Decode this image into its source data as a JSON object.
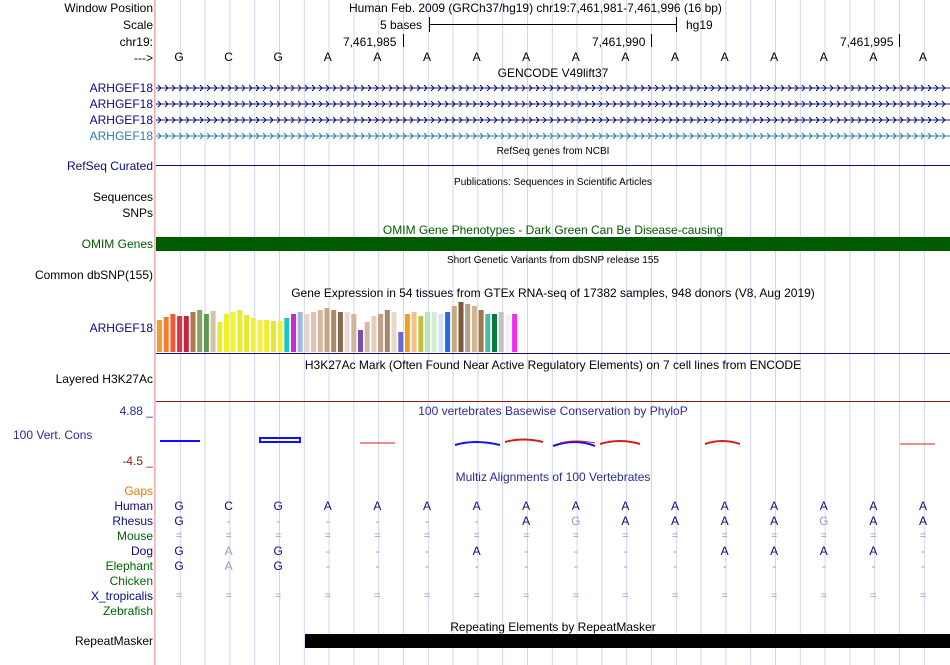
{
  "header": {
    "window_label": "Window Position",
    "window_text": "Human Feb. 2009 (GRCh37/hg19)   chr19:7,461,981-7,461,996 (16 bp)",
    "scale_label": "Scale",
    "scale_text": "5 bases",
    "scale_assembly": "hg19",
    "chrom_label": "chr19:",
    "ticks": [
      "7,461,985",
      "7,461,990",
      "7,461,995"
    ],
    "strand_label": "--->"
  },
  "sequence": [
    "G",
    "C",
    "G",
    "A",
    "A",
    "A",
    "A",
    "A",
    "A",
    "A",
    "A",
    "A",
    "A",
    "A",
    "A",
    "A"
  ],
  "tracks": {
    "gencode": {
      "title": "GENCODE V49lift37",
      "genes": [
        "ARHGEF18",
        "ARHGEF18",
        "ARHGEF18",
        "ARHGEF18"
      ],
      "colors": [
        "#0c0c78",
        "#0c0c78",
        "#0c0c78",
        "#2c7fa8"
      ]
    },
    "refseq": {
      "label": "RefSeq Curated",
      "title": "RefSeq genes from NCBI"
    },
    "pubs": {
      "title": "Publications: Sequences in Scientific Articles",
      "label1": "Sequences",
      "label2": "SNPs"
    },
    "omim": {
      "label": "OMIM Genes",
      "title": "OMIM Gene Phenotypes - Dark Green Can Be Disease-causing",
      "color": "#005a00"
    },
    "dbsnp": {
      "label": "Common dbSNP(155)",
      "title": "Short Genetic Variants from dbSNP release 155"
    },
    "gtex": {
      "label": "ARHGEF18",
      "title": "Gene Expression in 54 tissues from GTEx RNA-seq of 17382 samples, 948 donors (V8, Aug 2019)"
    },
    "h3k27ac": {
      "label": "Layered H3K27Ac",
      "title": "H3K27Ac Mark (Often Found Near Active Regulatory Elements) on 7 cell lines from ENCODE"
    },
    "phylop": {
      "label": "100 Vert. Cons",
      "title": "100 vertebrates Basewise Conservation by PhyloP",
      "max": "4.88 _",
      "min": "-4.5 _"
    },
    "multiz": {
      "title": "Multiz Alignments of 100 Vertebrates",
      "gaps_label": "Gaps",
      "species": [
        {
          "name": "Human",
          "color": "#0c0c78",
          "bases": [
            "G",
            "C",
            "G",
            "A",
            "A",
            "A",
            "A",
            "A",
            "A",
            "A",
            "A",
            "A",
            "A",
            "A",
            "A",
            "A"
          ]
        },
        {
          "name": "Rhesus",
          "color": "#0c0c78",
          "bases": [
            "G",
            "-",
            "-",
            "-",
            "-",
            "-",
            "-",
            "A",
            "G",
            "A",
            "A",
            "A",
            "A",
            "G",
            "A",
            "A"
          ]
        },
        {
          "name": "Mouse",
          "color": "#006400",
          "bases": [
            "=",
            "=",
            "=",
            "=",
            "=",
            "=",
            "=",
            "=",
            "=",
            "=",
            "=",
            "=",
            "=",
            "=",
            "=",
            "="
          ]
        },
        {
          "name": "Dog",
          "color": "#0c0c78",
          "bases": [
            "G",
            "A",
            "G",
            "-",
            "-",
            "-",
            "A",
            "-",
            "-",
            "-",
            "-",
            "A",
            "A",
            "A",
            "A",
            "-"
          ]
        },
        {
          "name": "Elephant",
          "color": "#006400",
          "bases": [
            "G",
            "A",
            "G",
            "-",
            "-",
            "-",
            "-",
            "-",
            "-",
            "-",
            "-",
            "-",
            "-",
            "-",
            "-",
            "-"
          ]
        },
        {
          "name": "Chicken",
          "color": "#006400",
          "bases": []
        },
        {
          "name": "X_tropicalis",
          "color": "#0c0c78",
          "bases": [
            "=",
            "=",
            "=",
            "=",
            "=",
            "=",
            "=",
            "=",
            "=",
            "=",
            "=",
            "=",
            "=",
            "=",
            "=",
            "="
          ]
        },
        {
          "name": "Zebrafish",
          "color": "#006400",
          "bases": []
        }
      ]
    },
    "repeatmasker": {
      "label": "RepeatMasker",
      "title": "Repeating Elements by RepeatMasker"
    }
  },
  "colors": {
    "gencode": "#0c0c78",
    "gencode_alt": "#2c7fa8",
    "omim": "#005a00",
    "phylop_pos": "#1010ff",
    "phylop_neg": "#d02020",
    "gaps": "#e08000",
    "guides": "#cfd6ee"
  }
}
